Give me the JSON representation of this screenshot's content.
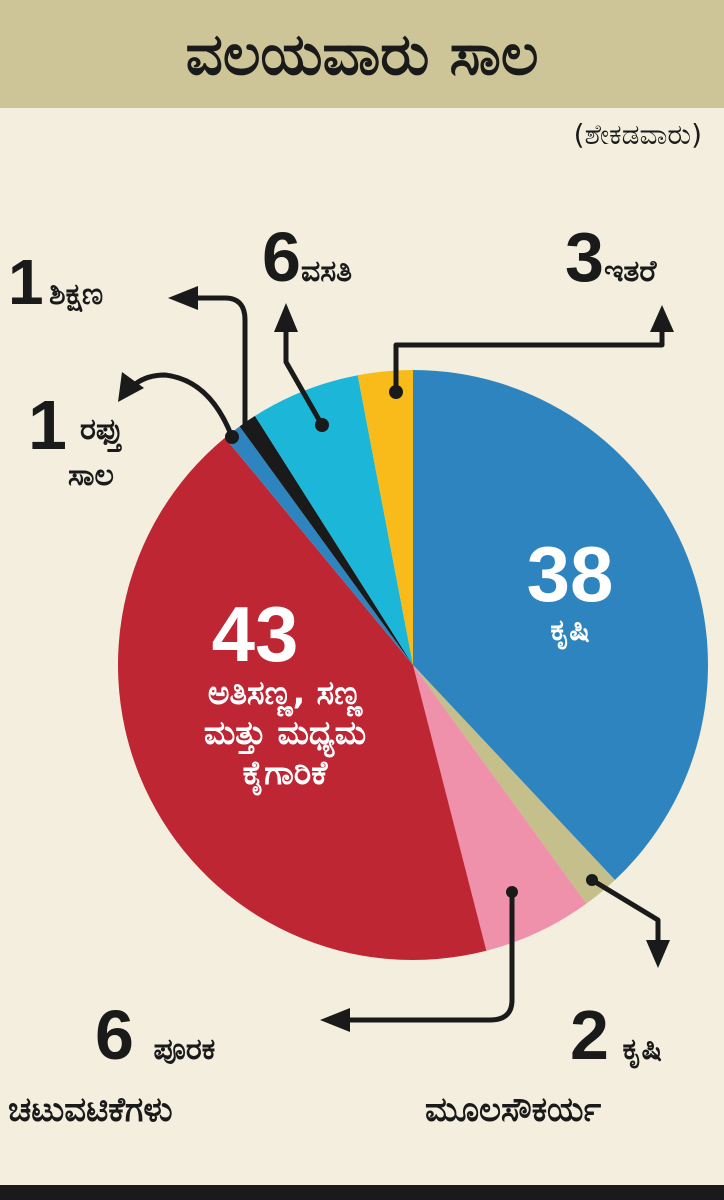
{
  "title": "ವಲಯವಾರು ಸಾಲ",
  "subtitle": "(ಶೇಕಡವಾರು)",
  "chart_data": {
    "type": "pie",
    "title": "ವಲಯವಾರು ಸಾಲ",
    "unit": "(ಶೇಕಡವಾರು)",
    "slices": [
      {
        "label": "ಕೃಷಿ",
        "value": 38,
        "color": "#2e84bf"
      },
      {
        "label": "ಕೃಷಿ ಮೂಲಸೌಕರ್ಯ",
        "value": 2,
        "color": "#c4bf8b"
      },
      {
        "label": "ಪೂರಕ ಚಟುವಟಿಕೆಗಳು",
        "value": 6,
        "color": "#f091ab"
      },
      {
        "label": "ಅತಿಸಣ್ಣ, ಸಣ್ಣ ಮತ್ತು ಮಧ್ಯಮ ಕೈಗಾರಿಕೆ",
        "value": 43,
        "color": "#bf2633"
      },
      {
        "label": "ರಫ್ತು ಸಾಲ",
        "value": 1,
        "color": "#2e84bf"
      },
      {
        "label": "ಶಿಕ್ಷಣ",
        "value": 1,
        "color": "#1a1a1a"
      },
      {
        "label": "ವಸತಿ",
        "value": 6,
        "color": "#1bb6d8"
      },
      {
        "label": "ಇತರೆ",
        "value": 3,
        "color": "#f8bb1a"
      }
    ],
    "labels": {
      "agri": {
        "num": "38",
        "text": "ಕೃಷಿ"
      },
      "agri_infra": {
        "num": "2",
        "text1": "ಕೃಷಿ",
        "text2": "ಮೂಲಸೌಕರ್ಯ"
      },
      "allied": {
        "num": "6",
        "text1": "ಪೂರಕ",
        "text2": "ಚಟುವಟಿಕೆಗಳು"
      },
      "msme": {
        "num": "43",
        "text1": "ಅತಿಸಣ್ಣ, ಸಣ್ಣ",
        "text2": "ಮತ್ತು ಮಧ್ಯಮ",
        "text3": "ಕೈಗಾರಿಕೆ"
      },
      "export": {
        "num": "1",
        "text1": "ರಫ್ತು",
        "text2": "ಸಾಲ"
      },
      "education": {
        "num": "1",
        "text": "ಶಿಕ್ಷಣ"
      },
      "housing": {
        "num": "6",
        "text": "ವಸತಿ"
      },
      "other": {
        "num": "3",
        "text": "ಇತರೆ"
      }
    }
  }
}
